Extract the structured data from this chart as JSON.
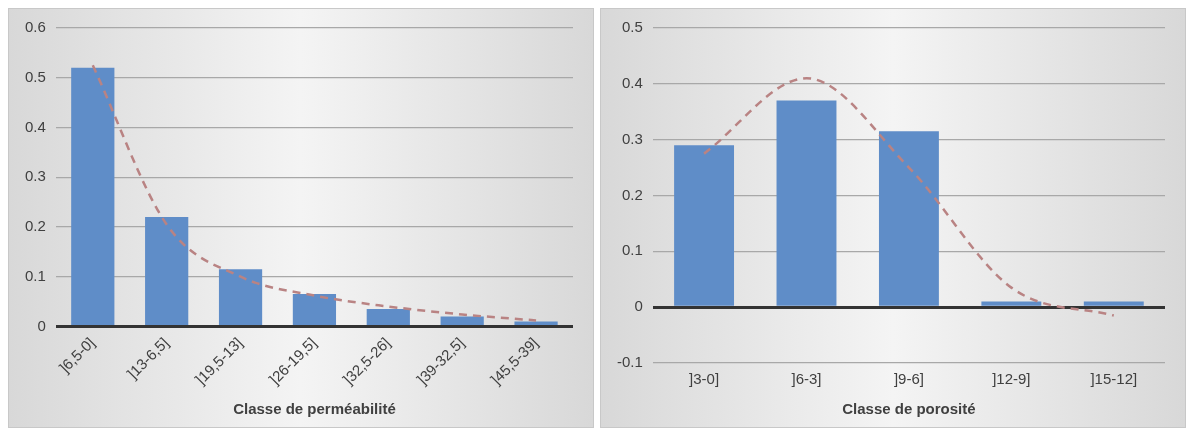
{
  "chart_data": [
    {
      "type": "bar",
      "xlabel": "Classe de perméabilité",
      "categories": [
        "]6,5-0]",
        "]13-6,5]",
        "]19,5-13]",
        "]26-19,5]",
        "]32,5-26]",
        "]39-32,5]",
        "]45,5-39]"
      ],
      "ylim": [
        0,
        0.6
      ],
      "yticks": [
        0,
        0.1,
        0.2,
        0.3,
        0.4,
        0.5,
        0.6
      ],
      "grid": "y",
      "legend": false,
      "series": [
        {
          "color": "#5f8dc8",
          "values": [
            0.52,
            0.22,
            0.115,
            0.065,
            0.035,
            0.02,
            0.01
          ]
        },
        {
          "type": "line",
          "color": "#b98383",
          "line_style": "dashed",
          "marker": "none",
          "values": [
            0.525,
            0.205,
            0.1,
            0.062,
            0.04,
            0.024,
            0.012
          ]
        }
      ]
    },
    {
      "type": "bar",
      "xlabel": "Classe de porosité",
      "categories": [
        "]3-0]",
        "]6-3]",
        "]9-6]",
        "]12-9]",
        "]15-12]"
      ],
      "ylim": [
        -0.1,
        0.5
      ],
      "yticks": [
        -0.1,
        0,
        0.1,
        0.2,
        0.3,
        0.4,
        0.5
      ],
      "grid": "y",
      "legend": false,
      "series": [
        {
          "color": "#5f8dc8",
          "values": [
            0.29,
            0.37,
            0.315,
            0.01,
            0.01
          ]
        },
        {
          "type": "line",
          "color": "#b98383",
          "line_style": "dashed",
          "marker": "none",
          "values": [
            0.275,
            0.41,
            0.25,
            0.035,
            -0.015
          ]
        }
      ]
    }
  ]
}
